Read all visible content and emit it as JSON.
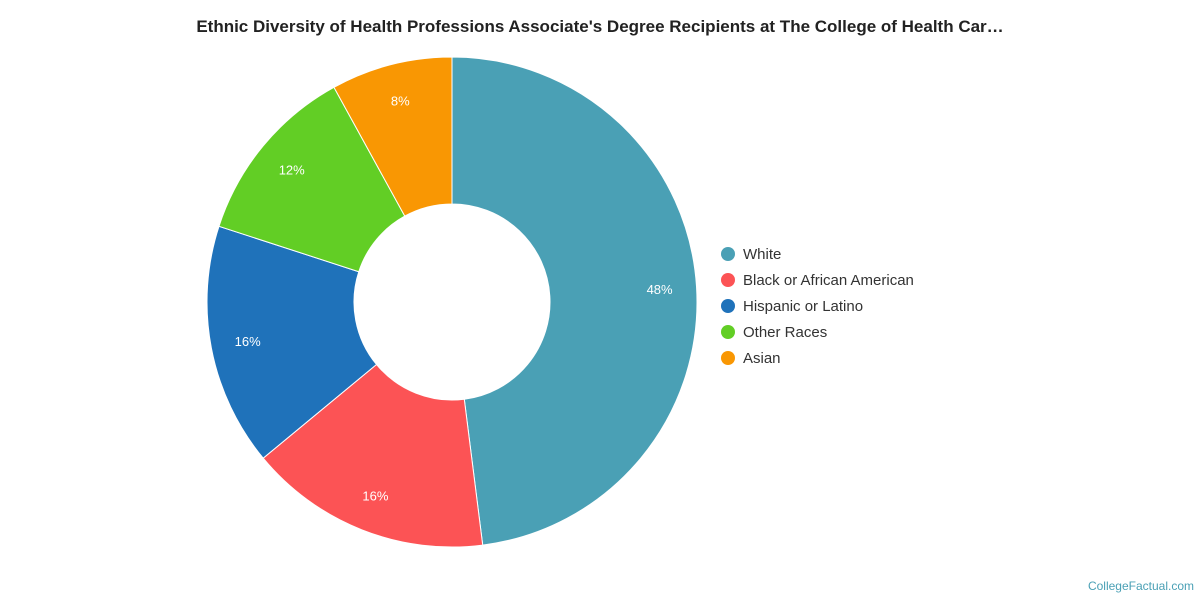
{
  "title": "Ethnic Diversity of Health Professions Associate's Degree Recipients at The College of Health Car…",
  "credit": "CollegeFactual.com",
  "chart_data": {
    "type": "pie",
    "donut": true,
    "legend_position": "right",
    "slices": [
      {
        "label": "White",
        "value": 48,
        "display": "48%",
        "color": "#4aa0b5"
      },
      {
        "label": "Black or African American",
        "value": 16,
        "display": "16%",
        "color": "#fc5355"
      },
      {
        "label": "Hispanic or Latino",
        "value": 16,
        "display": "16%",
        "color": "#1f72ba"
      },
      {
        "label": "Other Races",
        "value": 12,
        "display": "12%",
        "color": "#62ce25"
      },
      {
        "label": "Asian",
        "value": 8,
        "display": "8%",
        "color": "#f99703"
      }
    ]
  }
}
